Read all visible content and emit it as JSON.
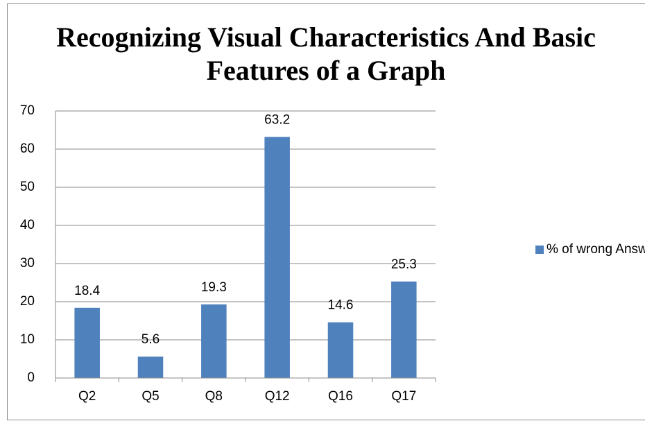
{
  "chart_data": {
    "type": "bar",
    "title": "Recognizing Visual Characteristics And Basic Features of a Graph",
    "categories": [
      "Q2",
      "Q5",
      "Q8",
      "Q12",
      "Q16",
      "Q17"
    ],
    "series": [
      {
        "name": "% of wrong Answers",
        "color": "#4f81bd",
        "values": [
          18.4,
          5.6,
          19.3,
          63.2,
          14.6,
          25.3
        ]
      }
    ],
    "ylim": [
      0,
      70
    ],
    "yticks": [
      0,
      10,
      20,
      30,
      40,
      50,
      60,
      70
    ],
    "grid": true,
    "legend": "right",
    "data_labels": true
  }
}
